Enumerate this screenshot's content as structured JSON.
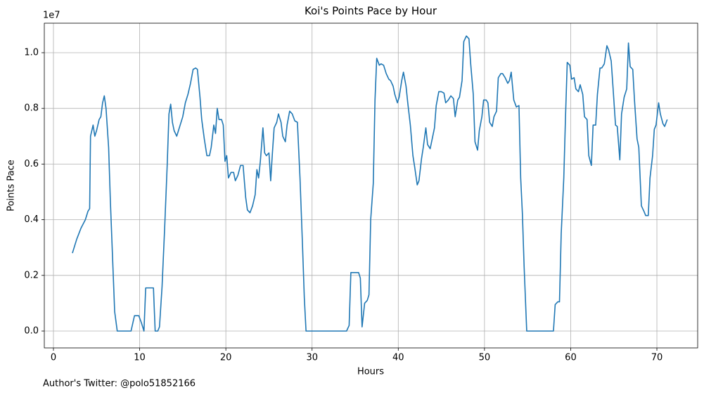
{
  "chart_data": {
    "type": "line",
    "title": "Koi's Points Pace by Hour",
    "xlabel": "Hours",
    "ylabel": "Points Pace",
    "y_offset_label": "1e7",
    "footnote": "Author's Twitter: @polo51852166",
    "grid": true,
    "xlim": [
      -1.06,
      74.73
    ],
    "ylim": [
      -0.0606,
      1.106
    ],
    "xticks": [
      0,
      10,
      20,
      30,
      40,
      50,
      60,
      70
    ],
    "yticks": [
      {
        "value": 0,
        "label": "0.0"
      },
      {
        "value": 0.2,
        "label": "0.2"
      },
      {
        "value": 0.4,
        "label": "0.4"
      },
      {
        "value": 0.6,
        "label": "0.6"
      },
      {
        "value": 0.8,
        "label": "0.8"
      },
      {
        "value": 1.0,
        "label": "1.0"
      }
    ],
    "x": [
      2.2,
      2.7,
      3.2,
      3.7,
      4.0,
      4.2,
      4.3,
      4.6,
      4.8,
      5.0,
      5.3,
      5.5,
      5.7,
      5.9,
      6.1,
      6.4,
      6.6,
      6.9,
      7.1,
      7.4,
      8,
      9,
      9.4,
      9.9,
      10.2,
      10.5,
      10.7,
      11.2,
      11.6,
      11.8,
      12.1,
      12.3,
      12.6,
      12.9,
      13.2,
      13.4,
      13.6,
      13.8,
      14.0,
      14.3,
      14.6,
      15.0,
      15.3,
      15.6,
      15.9,
      16.2,
      16.5,
      16.7,
      17.0,
      17.2,
      17.5,
      17.8,
      18.1,
      18.3,
      18.6,
      18.8,
      19.0,
      19.2,
      19.5,
      19.7,
      19.9,
      20.1,
      20.3,
      20.6,
      20.9,
      21.1,
      21.4,
      21.7,
      22.0,
      22.3,
      22.5,
      22.8,
      23.1,
      23.4,
      23.6,
      23.8,
      24.0,
      24.3,
      24.5,
      24.7,
      25.0,
      25.2,
      25.4,
      25.6,
      25.9,
      26.1,
      26.4,
      26.6,
      26.9,
      27.1,
      27.4,
      27.7,
      28.0,
      28.3,
      28.6,
      28.9,
      29.1,
      29.3,
      30,
      34,
      34.3,
      34.5,
      35.0,
      35.4,
      35.6,
      35.8,
      36.1,
      36.4,
      36.6,
      36.8,
      37.1,
      37.3,
      37.5,
      37.8,
      38.0,
      38.3,
      38.6,
      38.9,
      39.1,
      39.4,
      39.6,
      39.9,
      40.1,
      40.4,
      40.6,
      40.9,
      41.1,
      41.4,
      41.7,
      41.9,
      42.2,
      42.4,
      42.7,
      42.9,
      43.2,
      43.4,
      43.7,
      44.0,
      44.2,
      44.4,
      44.7,
      45.0,
      45.3,
      45.5,
      45.8,
      46.1,
      46.4,
      46.6,
      46.9,
      47.1,
      47.4,
      47.6,
      47.9,
      48.2,
      48.4,
      48.7,
      48.9,
      49.2,
      49.4,
      49.7,
      49.9,
      50.2,
      50.4,
      50.6,
      50.9,
      51.1,
      51.4,
      51.6,
      51.9,
      52.1,
      52.4,
      52.7,
      52.9,
      53.1,
      53.4,
      53.7,
      54.0,
      54.2,
      54.4,
      54.6,
      54.9,
      56,
      58,
      58.2,
      58.5,
      58.7,
      58.9,
      59.2,
      59.4,
      59.6,
      59.9,
      60.1,
      60.4,
      60.6,
      60.9,
      61.1,
      61.4,
      61.6,
      61.9,
      62.1,
      62.4,
      62.6,
      62.9,
      63.1,
      63.4,
      63.6,
      63.9,
      64.2,
      64.4,
      64.7,
      64.9,
      65.2,
      65.4,
      65.7,
      65.9,
      66.2,
      66.5,
      66.7,
      66.9,
      67.2,
      67.4,
      67.7,
      67.9,
      68.2,
      68.5,
      68.7,
      69.0,
      69.2,
      69.5,
      69.7,
      69.9,
      70.2,
      70.4,
      70.7,
      70.9,
      71.2
    ],
    "series": [
      {
        "name": "Points Pace",
        "color": "#1f77b4",
        "values": [
          0.28,
          0.33,
          0.37,
          0.4,
          0.43,
          0.44,
          0.7,
          0.74,
          0.7,
          0.72,
          0.76,
          0.77,
          0.82,
          0.845,
          0.8,
          0.66,
          0.47,
          0.23,
          0.07,
          0,
          0,
          0,
          0.055,
          0.055,
          0.03,
          0,
          0.155,
          0.155,
          0.155,
          0,
          0,
          0.015,
          0.16,
          0.37,
          0.6,
          0.78,
          0.815,
          0.75,
          0.72,
          0.7,
          0.73,
          0.77,
          0.82,
          0.85,
          0.89,
          0.94,
          0.945,
          0.94,
          0.84,
          0.76,
          0.69,
          0.63,
          0.63,
          0.66,
          0.74,
          0.71,
          0.8,
          0.76,
          0.76,
          0.74,
          0.61,
          0.63,
          0.55,
          0.57,
          0.57,
          0.54,
          0.56,
          0.595,
          0.595,
          0.48,
          0.435,
          0.425,
          0.45,
          0.49,
          0.58,
          0.55,
          0.61,
          0.73,
          0.64,
          0.63,
          0.64,
          0.54,
          0.64,
          0.73,
          0.75,
          0.78,
          0.75,
          0.7,
          0.68,
          0.74,
          0.79,
          0.78,
          0.755,
          0.75,
          0.55,
          0.3,
          0.12,
          0,
          0,
          0,
          0.02,
          0.21,
          0.21,
          0.21,
          0.19,
          0.015,
          0.1,
          0.11,
          0.13,
          0.4,
          0.53,
          0.83,
          0.98,
          0.955,
          0.96,
          0.955,
          0.925,
          0.905,
          0.9,
          0.88,
          0.85,
          0.82,
          0.84,
          0.9,
          0.93,
          0.88,
          0.82,
          0.74,
          0.63,
          0.59,
          0.525,
          0.54,
          0.62,
          0.66,
          0.73,
          0.67,
          0.655,
          0.7,
          0.73,
          0.81,
          0.86,
          0.86,
          0.855,
          0.82,
          0.83,
          0.845,
          0.835,
          0.77,
          0.83,
          0.84,
          0.9,
          1.04,
          1.06,
          1.05,
          0.96,
          0.85,
          0.68,
          0.65,
          0.72,
          0.77,
          0.83,
          0.83,
          0.82,
          0.75,
          0.735,
          0.77,
          0.79,
          0.91,
          0.925,
          0.925,
          0.91,
          0.89,
          0.9,
          0.93,
          0.83,
          0.805,
          0.81,
          0.55,
          0.42,
          0.23,
          0,
          0,
          0,
          0.095,
          0.105,
          0.105,
          0.35,
          0.55,
          0.77,
          0.965,
          0.955,
          0.905,
          0.91,
          0.87,
          0.86,
          0.885,
          0.85,
          0.77,
          0.76,
          0.63,
          0.595,
          0.74,
          0.74,
          0.85,
          0.945,
          0.945,
          0.96,
          1.025,
          1.01,
          0.97,
          0.88,
          0.74,
          0.735,
          0.615,
          0.78,
          0.84,
          0.87,
          1.035,
          0.95,
          0.94,
          0.83,
          0.69,
          0.66,
          0.45,
          0.43,
          0.415,
          0.415,
          0.55,
          0.63,
          0.725,
          0.74,
          0.82,
          0.78,
          0.745,
          0.735,
          0.76
        ]
      }
    ]
  }
}
